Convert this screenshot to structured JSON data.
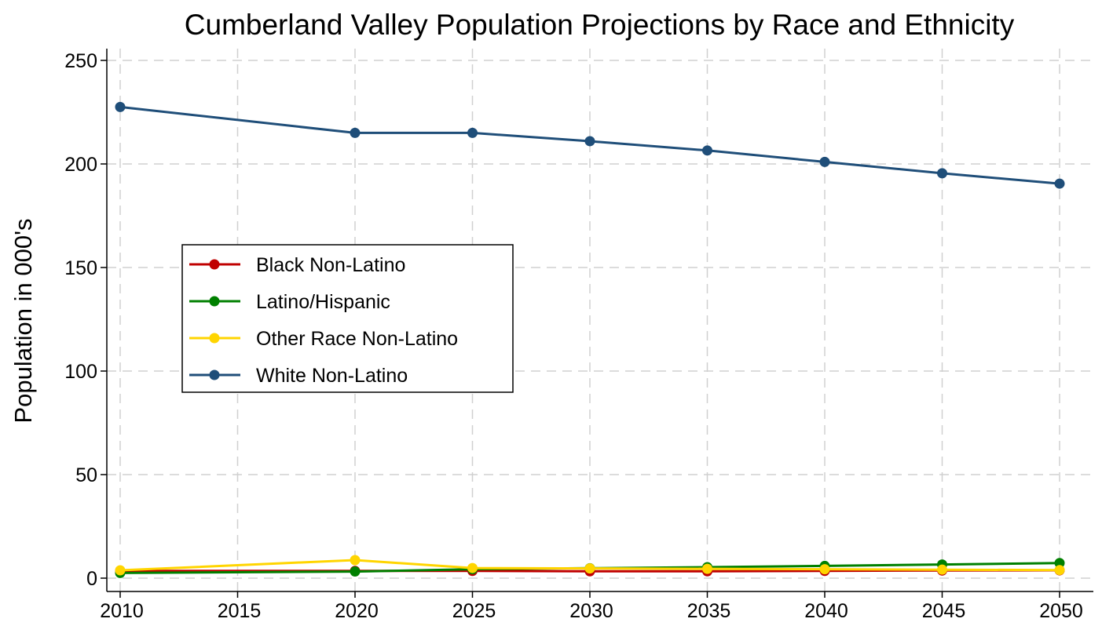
{
  "chart_data": {
    "type": "line",
    "title": "Cumberland Valley Population Projections by Race and Ethnicity",
    "xlabel": "",
    "ylabel": "Population in 000's",
    "x": [
      2010,
      2020,
      2025,
      2030,
      2035,
      2040,
      2045,
      2050
    ],
    "xticks": [
      2010,
      2015,
      2020,
      2025,
      2030,
      2035,
      2040,
      2045,
      2050
    ],
    "yticks": [
      0,
      50,
      100,
      150,
      200,
      250
    ],
    "xlim": [
      2010,
      2050
    ],
    "ylim": [
      0,
      250
    ],
    "grid": true,
    "legend_position": "center-left",
    "series": [
      {
        "name": "Black Non-Latino",
        "color": "#c00000",
        "values": [
          3.5,
          3.5,
          3.5,
          3.3,
          3.3,
          3.5,
          3.7,
          3.8
        ]
      },
      {
        "name": "Latino/Hispanic",
        "color": "#008000",
        "values": [
          2.5,
          3.2,
          4.3,
          4.8,
          5.3,
          5.9,
          6.6,
          7.3
        ]
      },
      {
        "name": "Other Race Non-Latino",
        "color": "#ffd500",
        "values": [
          3.8,
          8.7,
          4.9,
          4.7,
          4.5,
          4.3,
          4.1,
          3.9
        ]
      },
      {
        "name": "White Non-Latino",
        "color": "#1f4e79",
        "values": [
          227.5,
          215,
          215,
          211,
          206.5,
          201,
          195.5,
          190.5
        ]
      }
    ]
  }
}
